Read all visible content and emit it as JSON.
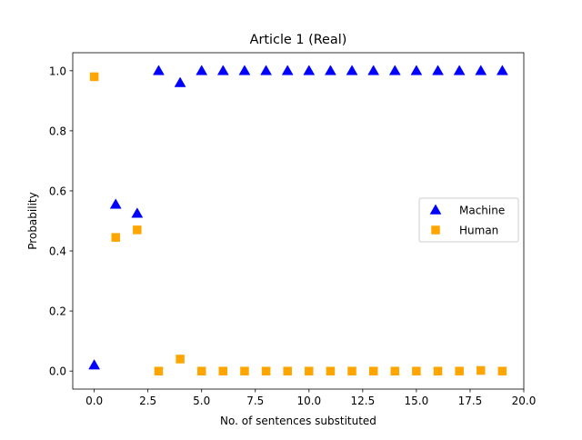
{
  "chart_data": {
    "type": "scatter",
    "title": "Article 1 (Real)",
    "xlabel": "No. of sentences substituted",
    "ylabel": "Probability",
    "xlim": [
      -1.0,
      20.0
    ],
    "ylim": [
      -0.06,
      1.06
    ],
    "x_ticks": [
      0.0,
      2.5,
      5.0,
      7.5,
      10.0,
      12.5,
      15.0,
      17.5,
      20.0
    ],
    "x_tick_labels": [
      "0.0",
      "2.5",
      "5.0",
      "7.5",
      "10.0",
      "12.5",
      "15.0",
      "17.5",
      "20.0"
    ],
    "y_ticks": [
      0.0,
      0.2,
      0.4,
      0.6,
      0.8,
      1.0
    ],
    "y_tick_labels": [
      "0.0",
      "0.2",
      "0.4",
      "0.6",
      "0.8",
      "1.0"
    ],
    "grid": false,
    "legend_position": "center-right",
    "x": [
      0,
      1,
      2,
      3,
      4,
      5,
      6,
      7,
      8,
      9,
      10,
      11,
      12,
      13,
      14,
      15,
      16,
      17,
      18,
      19
    ],
    "series": [
      {
        "name": "Machine",
        "marker": "triangle",
        "color": "#0000ff",
        "values": [
          0.02,
          0.555,
          0.525,
          1.0,
          0.96,
          1.0,
          1.0,
          1.0,
          1.0,
          1.0,
          1.0,
          1.0,
          1.0,
          1.0,
          1.0,
          1.0,
          1.0,
          1.0,
          1.0,
          1.0
        ]
      },
      {
        "name": "Human",
        "marker": "square",
        "color": "#ffa500",
        "values": [
          0.98,
          0.445,
          0.47,
          0.0,
          0.04,
          0.0,
          0.0,
          0.0,
          0.0,
          0.0,
          0.0,
          0.0,
          0.0,
          0.0,
          0.0,
          0.0,
          0.0,
          0.0,
          0.002,
          0.0
        ]
      }
    ]
  }
}
